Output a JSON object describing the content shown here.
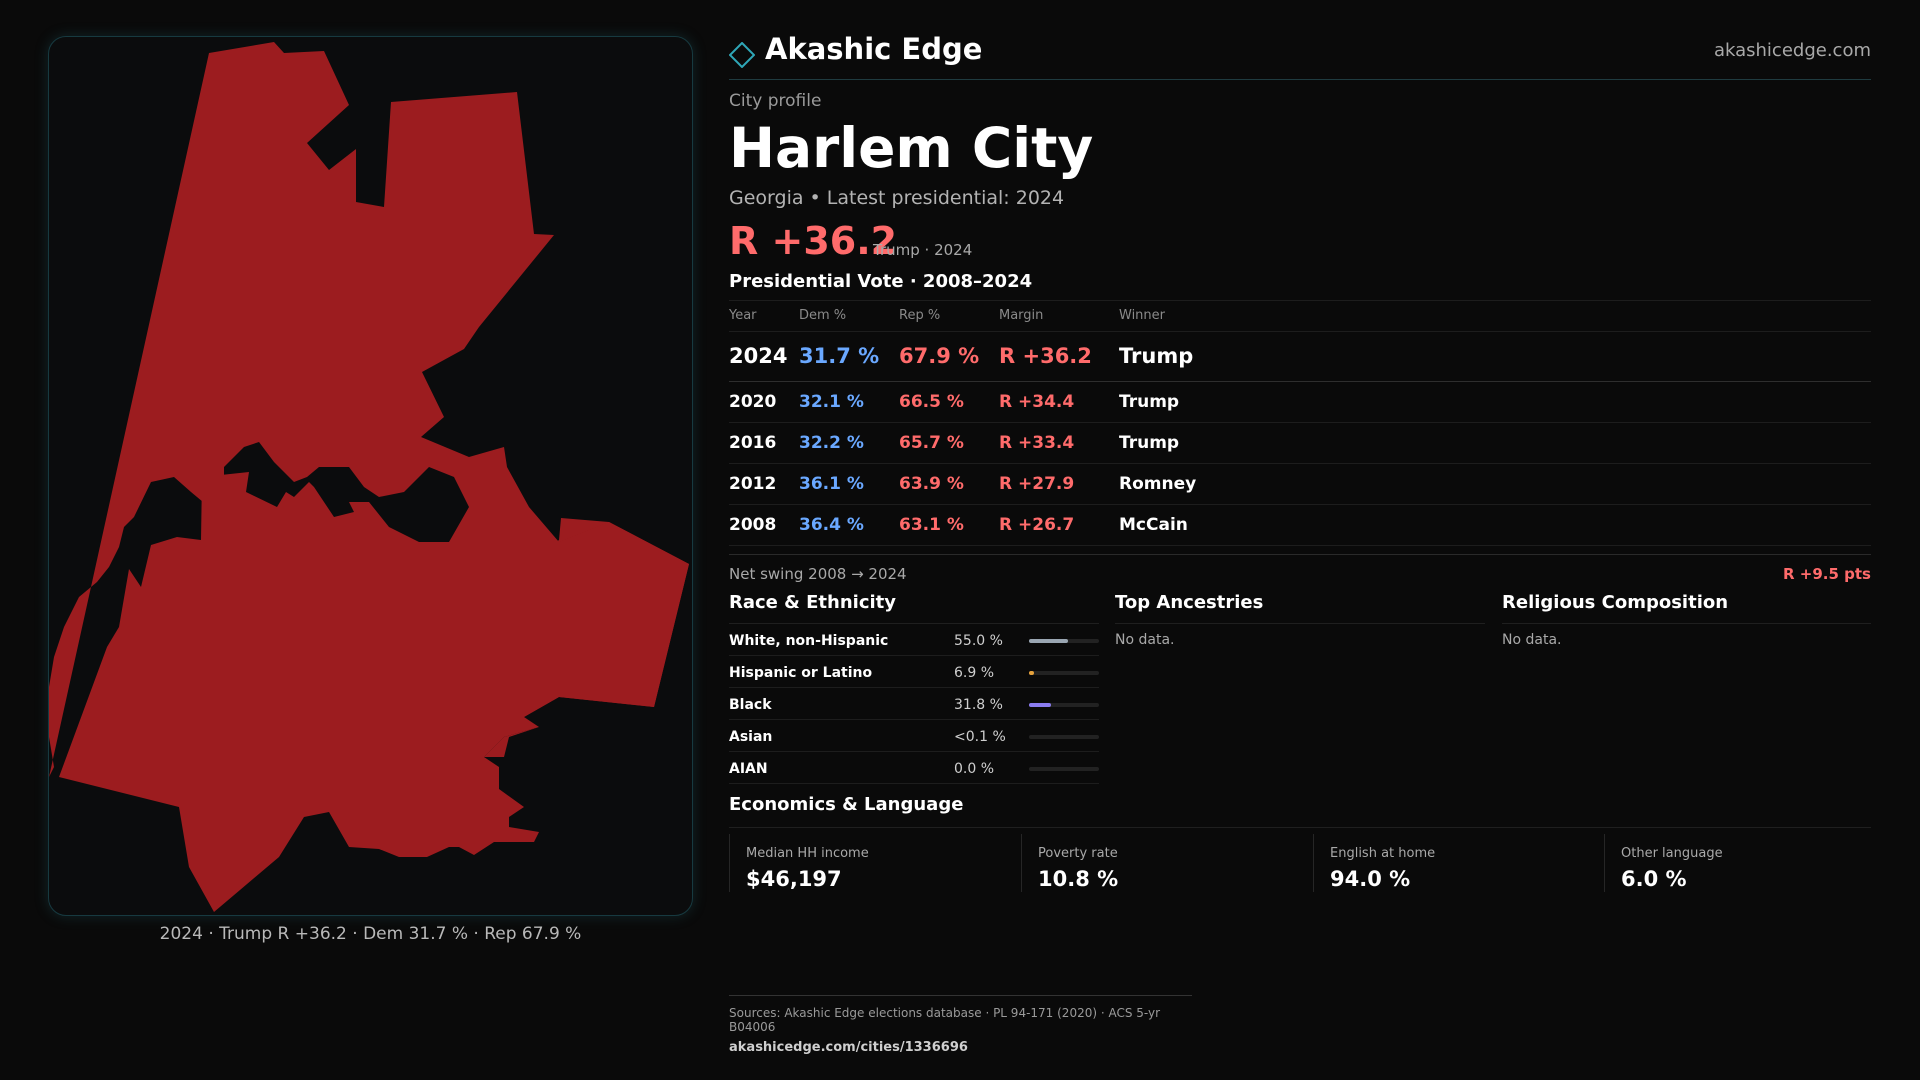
{
  "header": {
    "brand": "Akashic Edge",
    "domain": "akashicedge.com"
  },
  "profile": {
    "eyebrow": "City profile",
    "city": "Harlem City",
    "subtitle": "Georgia • Latest presidential: 2024",
    "margin": "R +36.2",
    "margin_note": "Trump · 2024"
  },
  "votes": {
    "title": "Presidential Vote · 2008–2024",
    "headers": [
      "Year",
      "Dem %",
      "Rep %",
      "Margin",
      "Winner"
    ],
    "rows": [
      {
        "year": "2024",
        "dem": "31.7 %",
        "rep": "67.9 %",
        "margin": "R +36.2",
        "winner": "Trump"
      },
      {
        "year": "2020",
        "dem": "32.1 %",
        "rep": "66.5 %",
        "margin": "R +34.4",
        "winner": "Trump"
      },
      {
        "year": "2016",
        "dem": "32.2 %",
        "rep": "65.7 %",
        "margin": "R +33.4",
        "winner": "Trump"
      },
      {
        "year": "2012",
        "dem": "36.1 %",
        "rep": "63.9 %",
        "margin": "R +27.9",
        "winner": "Romney"
      },
      {
        "year": "2008",
        "dem": "36.4 %",
        "rep": "63.1 %",
        "margin": "R +26.7",
        "winner": "McCain"
      }
    ],
    "swing_label": "Net swing 2008 → 2024",
    "swing_value": "R +9.5 pts"
  },
  "race": {
    "title": "Race & Ethnicity",
    "rows": [
      {
        "name": "White, non-Hispanic",
        "value": "55.0 %",
        "share": 0.55,
        "color": "#9aa6b2"
      },
      {
        "name": "Hispanic or Latino",
        "value": "6.9 %",
        "share": 0.069,
        "color": "#e6a23c"
      },
      {
        "name": "Black",
        "value": "31.8 %",
        "share": 0.318,
        "color": "#8b7cf0"
      },
      {
        "name": "Asian",
        "value": "<0.1 %",
        "share": 0.0,
        "color": "#5fb3a9"
      },
      {
        "name": "AIAN",
        "value": "0.0 %",
        "share": 0.0,
        "color": "#c07a5a"
      }
    ]
  },
  "ancestries": {
    "title": "Top Ancestries",
    "empty": "No data."
  },
  "religion": {
    "title": "Religious Composition",
    "empty": "No data."
  },
  "economics": {
    "title": "Economics & Language",
    "cells": [
      {
        "label": "Median HH income",
        "value": "$46,197"
      },
      {
        "label": "Poverty rate",
        "value": "10.8 %"
      },
      {
        "label": "English at home",
        "value": "94.0 %"
      },
      {
        "label": "Other language",
        "value": "6.0 %"
      }
    ]
  },
  "map": {
    "caption": "2024 · Trump R +36.2 · Dem 31.7 % · Rep 67.9 %",
    "fill": "#9c1c1f"
  },
  "footer": {
    "sources": "Sources: Akashic Edge elections database · PL 94-171 (2020) · ACS 5-yr B04006",
    "url": "akashicedge.com/cities/1336696"
  }
}
